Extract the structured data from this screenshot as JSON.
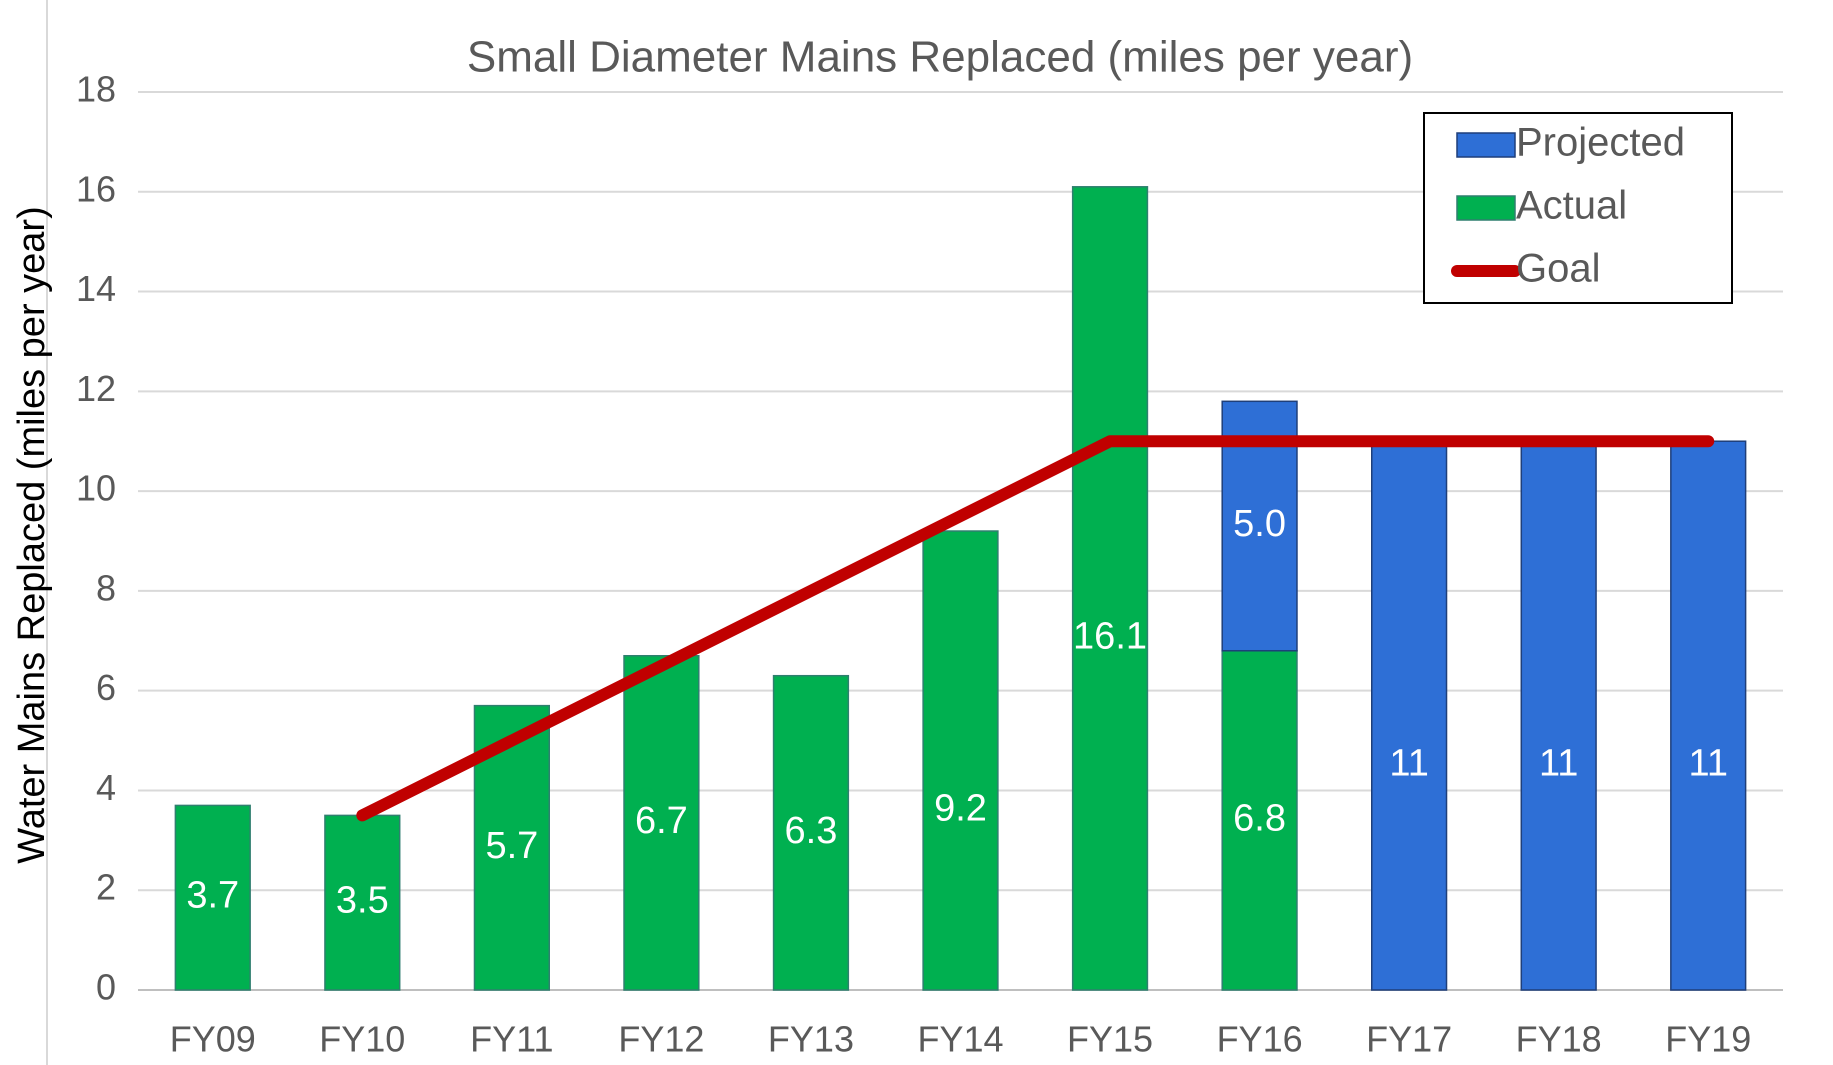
{
  "chart_data": {
    "type": "bar",
    "title": "Small Diameter Mains Replaced (miles per year)",
    "y_label": "Water Mains Replaced (miles per year)",
    "categories": [
      "FY09",
      "FY10",
      "FY11",
      "FY12",
      "FY13",
      "FY14",
      "FY15",
      "FY16",
      "FY17",
      "FY18",
      "FY19"
    ],
    "series": [
      {
        "name": "Actual",
        "type": "bar",
        "color": "#00b050",
        "values": [
          3.7,
          3.5,
          5.7,
          6.7,
          6.3,
          9.2,
          16.1,
          6.8,
          null,
          null,
          null
        ]
      },
      {
        "name": "Projected",
        "type": "bar",
        "color": "#2e6fd6",
        "values": [
          null,
          null,
          null,
          null,
          null,
          null,
          null,
          5.0,
          11,
          11,
          11
        ],
        "value_labels": [
          null,
          null,
          null,
          null,
          null,
          null,
          null,
          "5.0",
          "11",
          "11",
          "11"
        ]
      },
      {
        "name": "Goal",
        "type": "line",
        "color": "#c00000",
        "values": [
          null,
          3.5,
          5,
          6.5,
          8,
          9.5,
          11,
          11,
          11,
          11,
          11
        ]
      }
    ],
    "stacked": true,
    "ylim": [
      0,
      18
    ],
    "yticks": [
      0,
      2,
      4,
      6,
      8,
      10,
      12,
      14,
      16,
      18
    ],
    "grid": true,
    "legend": "upper right"
  }
}
